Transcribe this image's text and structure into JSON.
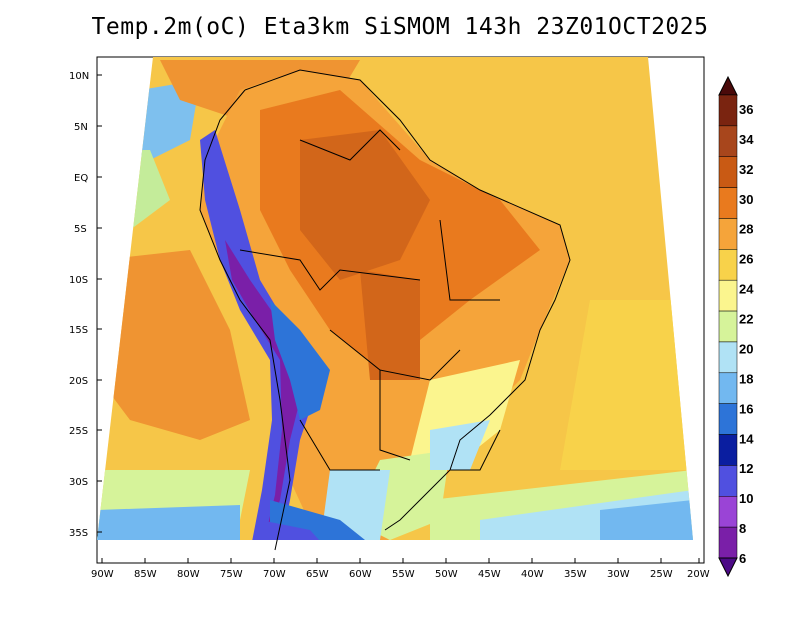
{
  "title": "Temp.2m(oC) Eta3km SiSMOM 143h 23Z01OCT2025",
  "lat_labels": [
    "10N",
    "5N",
    "EQ",
    "5S",
    "10S",
    "15S",
    "20S",
    "25S",
    "30S",
    "35S"
  ],
  "lon_labels": [
    "90W",
    "85W",
    "80W",
    "75W",
    "70W",
    "65W",
    "60W",
    "55W",
    "50W",
    "45W",
    "40W",
    "35W",
    "30W",
    "25W",
    "20W"
  ],
  "colorbar": {
    "labels": [
      "36",
      "34",
      "32",
      "30",
      "28",
      "26",
      "24",
      "22",
      "20",
      "18",
      "16",
      "14",
      "12",
      "10",
      "8",
      "6"
    ],
    "colors": [
      "#4a0a0a",
      "#7a2410",
      "#a8461c",
      "#c95a14",
      "#e97a1e",
      "#f5a43a",
      "#f8d24a",
      "#fbf58e",
      "#d6f39a",
      "#b0e2f5",
      "#72b8f0",
      "#2d74d8",
      "#0a1ea0",
      "#5050e0",
      "#9a44d6",
      "#7a1fa8",
      "#4c0a86"
    ]
  }
}
